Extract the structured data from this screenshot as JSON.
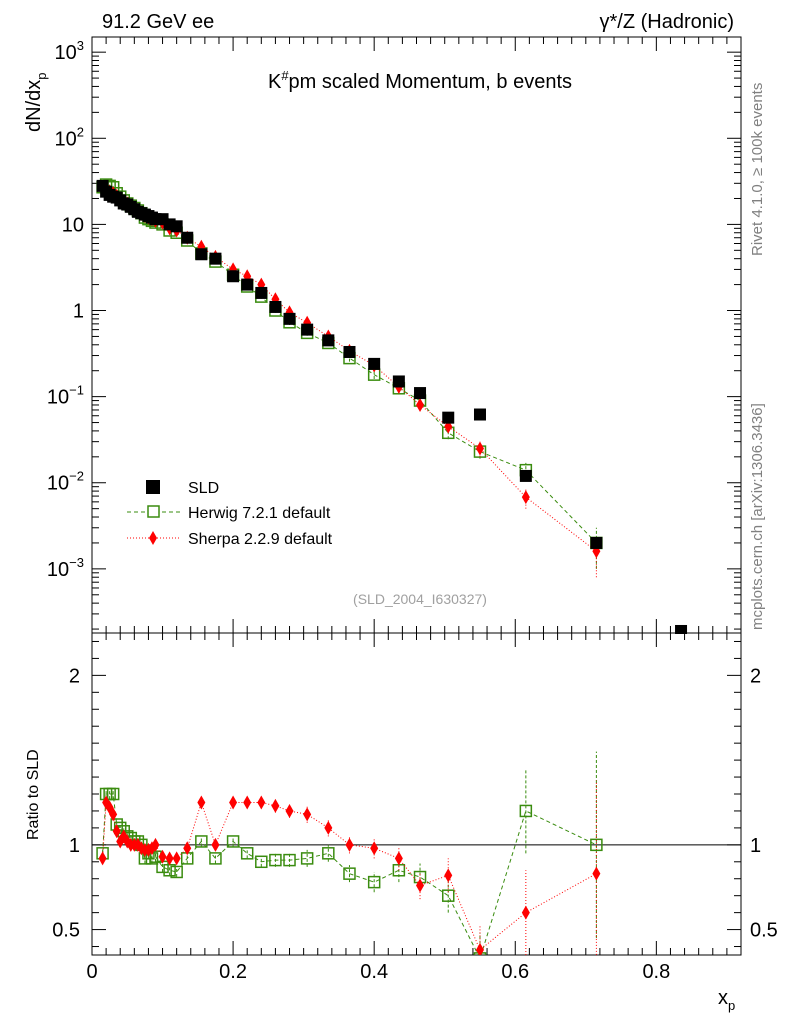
{
  "header": {
    "left": "91.2 GeV ee",
    "right": "γ*/Z (Hadronic)"
  },
  "side_text": {
    "rivet": "Rivet 4.1.0, ≥ 100k events",
    "mcplots": "mcplots.cern.ch [arXiv:1306.3436]"
  },
  "colors": {
    "data": "#000000",
    "herwig": "#3a8c0f",
    "sherpa": "#ff0000",
    "reference_line": "#000000",
    "watermark": "#a0a0a0"
  },
  "chart_data": [
    {
      "type": "scatter",
      "panel": "main",
      "title": "K#pm scaled Momentum, b events",
      "title_main": "K",
      "title_sup": "#",
      "title_rest": "pm scaled Momentum, b events",
      "ylabel": "dN/dx_p",
      "ylabel_main": "dN/dx",
      "ylabel_sub": "p",
      "yscale": "log",
      "xlim": [
        0,
        0.92
      ],
      "ylim": [
        0.00018,
        1500
      ],
      "ytick_labels": [
        {
          "value": 1000,
          "base": "10",
          "exp": "3"
        },
        {
          "value": 100,
          "base": "10",
          "exp": "2"
        },
        {
          "value": 10,
          "base": "10",
          "exp": ""
        },
        {
          "value": 1,
          "base": "1",
          "exp": ""
        },
        {
          "value": 0.1,
          "base": "10",
          "exp": "−1"
        },
        {
          "value": 0.01,
          "base": "10",
          "exp": "−2"
        },
        {
          "value": 0.001,
          "base": "10",
          "exp": "−3"
        }
      ],
      "watermark": "(SLD_2004_I630327)",
      "legend_position": "lower-left",
      "series": [
        {
          "name": "SLD",
          "marker": "square-filled",
          "x": [
            0.015,
            0.02,
            0.025,
            0.03,
            0.035,
            0.04,
            0.045,
            0.05,
            0.055,
            0.06,
            0.065,
            0.07,
            0.075,
            0.08,
            0.085,
            0.09,
            0.1,
            0.11,
            0.12,
            0.135,
            0.155,
            0.175,
            0.2,
            0.22,
            0.24,
            0.26,
            0.28,
            0.305,
            0.335,
            0.365,
            0.4,
            0.435,
            0.465,
            0.505,
            0.55,
            0.615,
            0.715,
            0.835
          ],
          "y": [
            28,
            24,
            22,
            21,
            20.5,
            19,
            17.5,
            17,
            16,
            15,
            14,
            13.5,
            13,
            12.5,
            12,
            11.5,
            11.5,
            10,
            9.5,
            7,
            4.5,
            4,
            2.5,
            2,
            1.6,
            1.1,
            0.8,
            0.6,
            0.45,
            0.33,
            0.24,
            0.15,
            0.11,
            0.057,
            0.062,
            0.012,
            0.002,
            0.00019
          ]
        },
        {
          "name": "Herwig 7.2.1 default",
          "marker": "square-open",
          "line": "dashed",
          "x": [
            0.015,
            0.02,
            0.025,
            0.03,
            0.035,
            0.04,
            0.045,
            0.05,
            0.055,
            0.06,
            0.065,
            0.07,
            0.075,
            0.08,
            0.085,
            0.09,
            0.1,
            0.11,
            0.12,
            0.135,
            0.155,
            0.175,
            0.2,
            0.22,
            0.24,
            0.26,
            0.28,
            0.305,
            0.335,
            0.365,
            0.4,
            0.435,
            0.465,
            0.505,
            0.55,
            0.615,
            0.715
          ],
          "y": [
            27,
            29,
            28,
            27,
            23,
            21,
            19,
            17.5,
            16.5,
            15.5,
            14.5,
            13.5,
            12,
            11.5,
            11,
            10.5,
            10,
            8.5,
            8,
            6.5,
            4.6,
            3.7,
            2.6,
            1.9,
            1.45,
            1.0,
            0.73,
            0.55,
            0.42,
            0.28,
            0.18,
            0.125,
            0.09,
            0.038,
            0.023,
            0.014,
            0.002
          ],
          "err": [
            1,
            1,
            1,
            1,
            1,
            1,
            0.8,
            0.8,
            0.8,
            0.8,
            0.7,
            0.7,
            0.6,
            0.6,
            0.6,
            0.5,
            0.5,
            0.4,
            0.4,
            0.3,
            0.2,
            0.2,
            0.12,
            0.1,
            0.08,
            0.06,
            0.05,
            0.04,
            0.03,
            0.025,
            0.02,
            0.015,
            0.012,
            0.006,
            0.004,
            0.003,
            0.001
          ]
        },
        {
          "name": "Sherpa 2.2.9 default",
          "marker": "diamond-filled",
          "line": "dotted",
          "x": [
            0.015,
            0.02,
            0.025,
            0.03,
            0.035,
            0.04,
            0.045,
            0.05,
            0.055,
            0.06,
            0.065,
            0.07,
            0.075,
            0.08,
            0.085,
            0.09,
            0.1,
            0.11,
            0.12,
            0.135,
            0.155,
            0.175,
            0.2,
            0.22,
            0.24,
            0.26,
            0.28,
            0.305,
            0.335,
            0.365,
            0.4,
            0.435,
            0.465,
            0.505,
            0.55,
            0.615,
            0.715
          ],
          "y": [
            26,
            25,
            24,
            23,
            21.5,
            20,
            18.5,
            17.5,
            16,
            15,
            14,
            13.2,
            12.5,
            12,
            11.5,
            11,
            10.5,
            9,
            8.5,
            7,
            5.5,
            4.2,
            3,
            2.5,
            2,
            1.35,
            0.95,
            0.72,
            0.5,
            0.34,
            0.23,
            0.13,
            0.08,
            0.045,
            0.025,
            0.0068,
            0.0016
          ],
          "err": [
            1,
            1,
            1,
            1,
            1,
            1,
            0.8,
            0.8,
            0.8,
            0.8,
            0.7,
            0.7,
            0.6,
            0.6,
            0.6,
            0.5,
            0.5,
            0.4,
            0.4,
            0.3,
            0.25,
            0.2,
            0.15,
            0.12,
            0.1,
            0.07,
            0.05,
            0.04,
            0.03,
            0.025,
            0.02,
            0.012,
            0.01,
            0.007,
            0.005,
            0.0018,
            0.0008
          ]
        }
      ]
    },
    {
      "type": "scatter",
      "panel": "ratio",
      "ylabel": "Ratio to SLD",
      "xlabel": "x_p",
      "xlabel_main": "x",
      "xlabel_sub": "p",
      "xlim": [
        0,
        0.92
      ],
      "ylim": [
        0.35,
        2.25
      ],
      "xticks": [
        0,
        0.2,
        0.4,
        0.6,
        0.8
      ],
      "xtick_labels": [
        "0",
        "0.2",
        "0.4",
        "0.6",
        "0.8"
      ],
      "yticks": [
        0.5,
        1,
        2
      ],
      "ytick_labels": [
        "0.5",
        "1",
        "2"
      ],
      "reference_value": 1,
      "series": [
        {
          "name": "Herwig 7.2.1 default",
          "x": [
            0.015,
            0.02,
            0.025,
            0.03,
            0.035,
            0.04,
            0.045,
            0.05,
            0.055,
            0.06,
            0.065,
            0.07,
            0.075,
            0.08,
            0.085,
            0.09,
            0.1,
            0.11,
            0.12,
            0.135,
            0.155,
            0.175,
            0.2,
            0.22,
            0.24,
            0.26,
            0.28,
            0.305,
            0.335,
            0.365,
            0.4,
            0.435,
            0.465,
            0.505,
            0.55,
            0.615,
            0.715
          ],
          "y": [
            0.95,
            1.3,
            1.3,
            1.3,
            1.12,
            1.1,
            1.08,
            1.05,
            1.04,
            1.02,
            1.02,
            1.0,
            0.92,
            0.95,
            0.92,
            0.93,
            0.87,
            0.85,
            0.84,
            0.92,
            1.02,
            0.92,
            1.02,
            0.95,
            0.9,
            0.91,
            0.91,
            0.92,
            0.95,
            0.83,
            0.78,
            0.85,
            0.81,
            0.7,
            0.33,
            1.2,
            1.0
          ],
          "err": [
            0.03,
            0.03,
            0.03,
            0.03,
            0.03,
            0.03,
            0.03,
            0.03,
            0.03,
            0.03,
            0.03,
            0.03,
            0.03,
            0.03,
            0.03,
            0.03,
            0.03,
            0.03,
            0.03,
            0.03,
            0.03,
            0.03,
            0.03,
            0.03,
            0.03,
            0.04,
            0.04,
            0.05,
            0.05,
            0.05,
            0.06,
            0.07,
            0.08,
            0.1,
            0.15,
            0.25,
            0.55
          ]
        },
        {
          "name": "Sherpa 2.2.9 default",
          "x": [
            0.015,
            0.02,
            0.025,
            0.03,
            0.035,
            0.04,
            0.045,
            0.05,
            0.055,
            0.06,
            0.065,
            0.07,
            0.075,
            0.08,
            0.085,
            0.09,
            0.1,
            0.11,
            0.12,
            0.135,
            0.155,
            0.175,
            0.2,
            0.22,
            0.24,
            0.26,
            0.28,
            0.305,
            0.335,
            0.365,
            0.4,
            0.435,
            0.465,
            0.505,
            0.55,
            0.615,
            0.715
          ],
          "y": [
            0.92,
            1.25,
            1.22,
            1.18,
            1.08,
            1.02,
            1.05,
            1.02,
            1.0,
            1.0,
            1.0,
            0.98,
            0.97,
            0.97,
            0.98,
            1.0,
            0.93,
            0.92,
            0.92,
            0.98,
            1.25,
            1.0,
            1.25,
            1.25,
            1.25,
            1.23,
            1.2,
            1.18,
            1.1,
            1.0,
            0.98,
            0.92,
            0.76,
            0.82,
            0.38,
            0.6,
            0.83
          ],
          "err": [
            0.03,
            0.03,
            0.03,
            0.03,
            0.03,
            0.03,
            0.03,
            0.03,
            0.03,
            0.03,
            0.03,
            0.03,
            0.03,
            0.03,
            0.03,
            0.03,
            0.03,
            0.03,
            0.03,
            0.03,
            0.03,
            0.03,
            0.03,
            0.03,
            0.03,
            0.04,
            0.04,
            0.05,
            0.05,
            0.05,
            0.06,
            0.07,
            0.08,
            0.1,
            0.15,
            0.25,
            0.55
          ]
        }
      ]
    }
  ]
}
